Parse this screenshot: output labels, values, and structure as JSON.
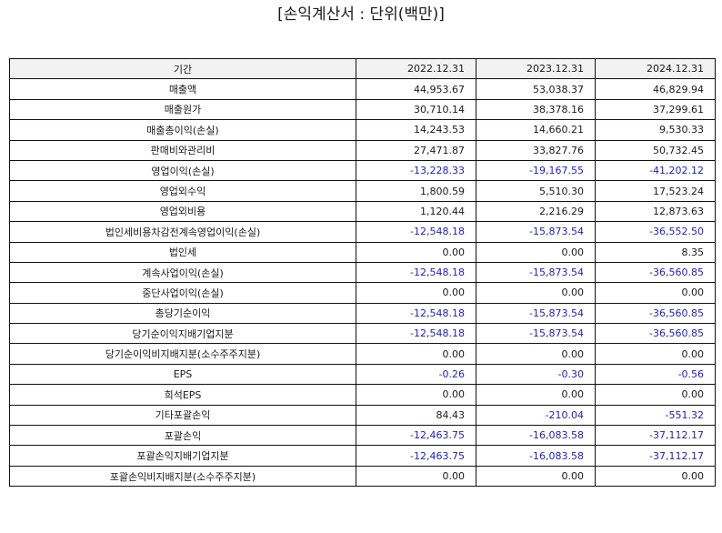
{
  "title": "[손익계산서 : 단위(백만)]",
  "colors": {
    "negative": "#2222bb",
    "positive": "#1a1a1a",
    "header_bg": "#f2f2f2"
  },
  "table": {
    "headers": [
      "기간",
      "2022.12.31",
      "2023.12.31",
      "2024.12.31"
    ],
    "rows": [
      {
        "label": "매출액",
        "values": [
          "44,953.67",
          "53,038.37",
          "46,829.94"
        ]
      },
      {
        "label": "매출원가",
        "values": [
          "30,710.14",
          "38,378.16",
          "37,299.61"
        ]
      },
      {
        "label": "매출총이익(손실)",
        "values": [
          "14,243.53",
          "14,660.21",
          "9,530.33"
        ]
      },
      {
        "label": "판매비와관리비",
        "values": [
          "27,471.87",
          "33,827.76",
          "50,732.45"
        ]
      },
      {
        "label": "영업이익(손실)",
        "values": [
          "-13,228.33",
          "-19,167.55",
          "-41,202.12"
        ]
      },
      {
        "label": "영업외수익",
        "values": [
          "1,800.59",
          "5,510.30",
          "17,523.24"
        ]
      },
      {
        "label": "영업외비용",
        "values": [
          "1,120.44",
          "2,216.29",
          "12,873.63"
        ]
      },
      {
        "label": "법인세비용차감전계속영업이익(손실)",
        "values": [
          "-12,548.18",
          "-15,873.54",
          "-36,552.50"
        ]
      },
      {
        "label": "법인세",
        "values": [
          "0.00",
          "0.00",
          "8.35"
        ]
      },
      {
        "label": "계속사업이익(손실)",
        "values": [
          "-12,548.18",
          "-15,873.54",
          "-36,560.85"
        ]
      },
      {
        "label": "중단사업이익(손실)",
        "values": [
          "0.00",
          "0.00",
          "0.00"
        ]
      },
      {
        "label": "총당기순이익",
        "values": [
          "-12,548.18",
          "-15,873.54",
          "-36,560.85"
        ]
      },
      {
        "label": "당기순이익지배기업지분",
        "values": [
          "-12,548.18",
          "-15,873.54",
          "-36,560.85"
        ]
      },
      {
        "label": "당기순이익비지배지분(소수주주지분)",
        "values": [
          "0.00",
          "0.00",
          "0.00"
        ]
      },
      {
        "label": "EPS",
        "values": [
          "-0.26",
          "-0.30",
          "-0.56"
        ]
      },
      {
        "label": "희석EPS",
        "values": [
          "0.00",
          "0.00",
          "0.00"
        ]
      },
      {
        "label": "기타포괄손익",
        "values": [
          "84.43",
          "-210.04",
          "-551.32"
        ]
      },
      {
        "label": "포괄손익",
        "values": [
          "-12,463.75",
          "-16,083.58",
          "-37,112.17"
        ]
      },
      {
        "label": "포괄손익지배기업지분",
        "values": [
          "-12,463.75",
          "-16,083.58",
          "-37,112.17"
        ]
      },
      {
        "label": "포괄손익비지배지분(소수주주지분)",
        "values": [
          "0.00",
          "0.00",
          "0.00"
        ]
      }
    ]
  }
}
